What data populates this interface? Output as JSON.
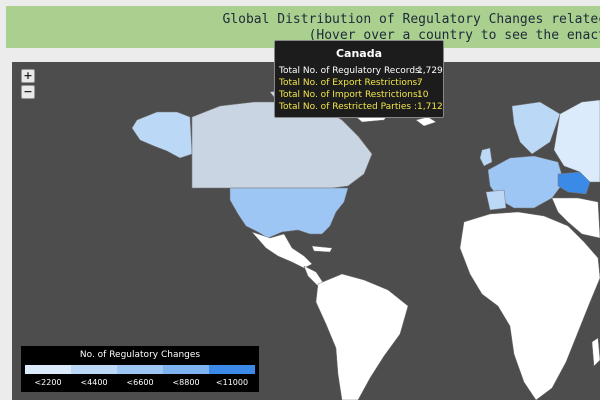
{
  "header": {
    "title_line1": "Global Distribution of Regulatory Changes relatec",
    "title_line2": "(Hover over a country to see the enact"
  },
  "zoom": {
    "in_label": "+",
    "out_label": "−"
  },
  "tooltip": {
    "country": "Canada",
    "rows": [
      {
        "label": "Total No. of Regulatory Records:",
        "value": "1,729"
      },
      {
        "label": "Total No. of Export Restrictions:",
        "value": "7"
      },
      {
        "label": "Total No. of Import Restrictions:",
        "value": "10"
      },
      {
        "label": "Total No. of Restricted Parties :",
        "value": "1,712"
      }
    ]
  },
  "legend": {
    "title": "No. of Regulatory Changes",
    "items": [
      {
        "label": "<2200",
        "color": "#dcebfb"
      },
      {
        "label": "<4400",
        "color": "#bcd8f7"
      },
      {
        "label": "<6600",
        "color": "#9dc6f4"
      },
      {
        "label": "<8800",
        "color": "#7db3f0"
      },
      {
        "label": "<11000",
        "color": "#3c8ae8"
      }
    ]
  },
  "colors": {
    "ocean": "#4d4d4d",
    "land": "#ffffff",
    "highlight": "#c9d5e2",
    "header": "#a9d08e"
  }
}
